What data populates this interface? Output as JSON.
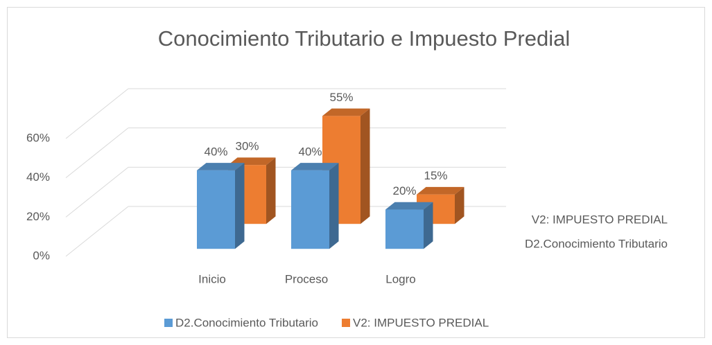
{
  "chart_data": {
    "type": "bar3d",
    "title": "Conocimiento Tributario e Impuesto  Predial",
    "categories": [
      "Inicio",
      "Proceso",
      "Logro"
    ],
    "series": [
      {
        "name": "D2.Conocimiento Tributario",
        "color": "#5b9bd5",
        "values": [
          40,
          40,
          20
        ],
        "value_labels": [
          "40%",
          "40%",
          "20%"
        ]
      },
      {
        "name": "V2: IMPUESTO PREDIAL",
        "color": "#ed7d31",
        "values": [
          30,
          55,
          15
        ],
        "value_labels": [
          "30%",
          "55%",
          "15%"
        ]
      }
    ],
    "ylim": [
      0,
      60
    ],
    "yticks": [
      {
        "value": 0,
        "label": "0%"
      },
      {
        "value": 20,
        "label": "20%"
      },
      {
        "value": 40,
        "label": "40%"
      },
      {
        "value": 60,
        "label": "60%"
      }
    ],
    "grid": true,
    "legend": "bottom"
  }
}
